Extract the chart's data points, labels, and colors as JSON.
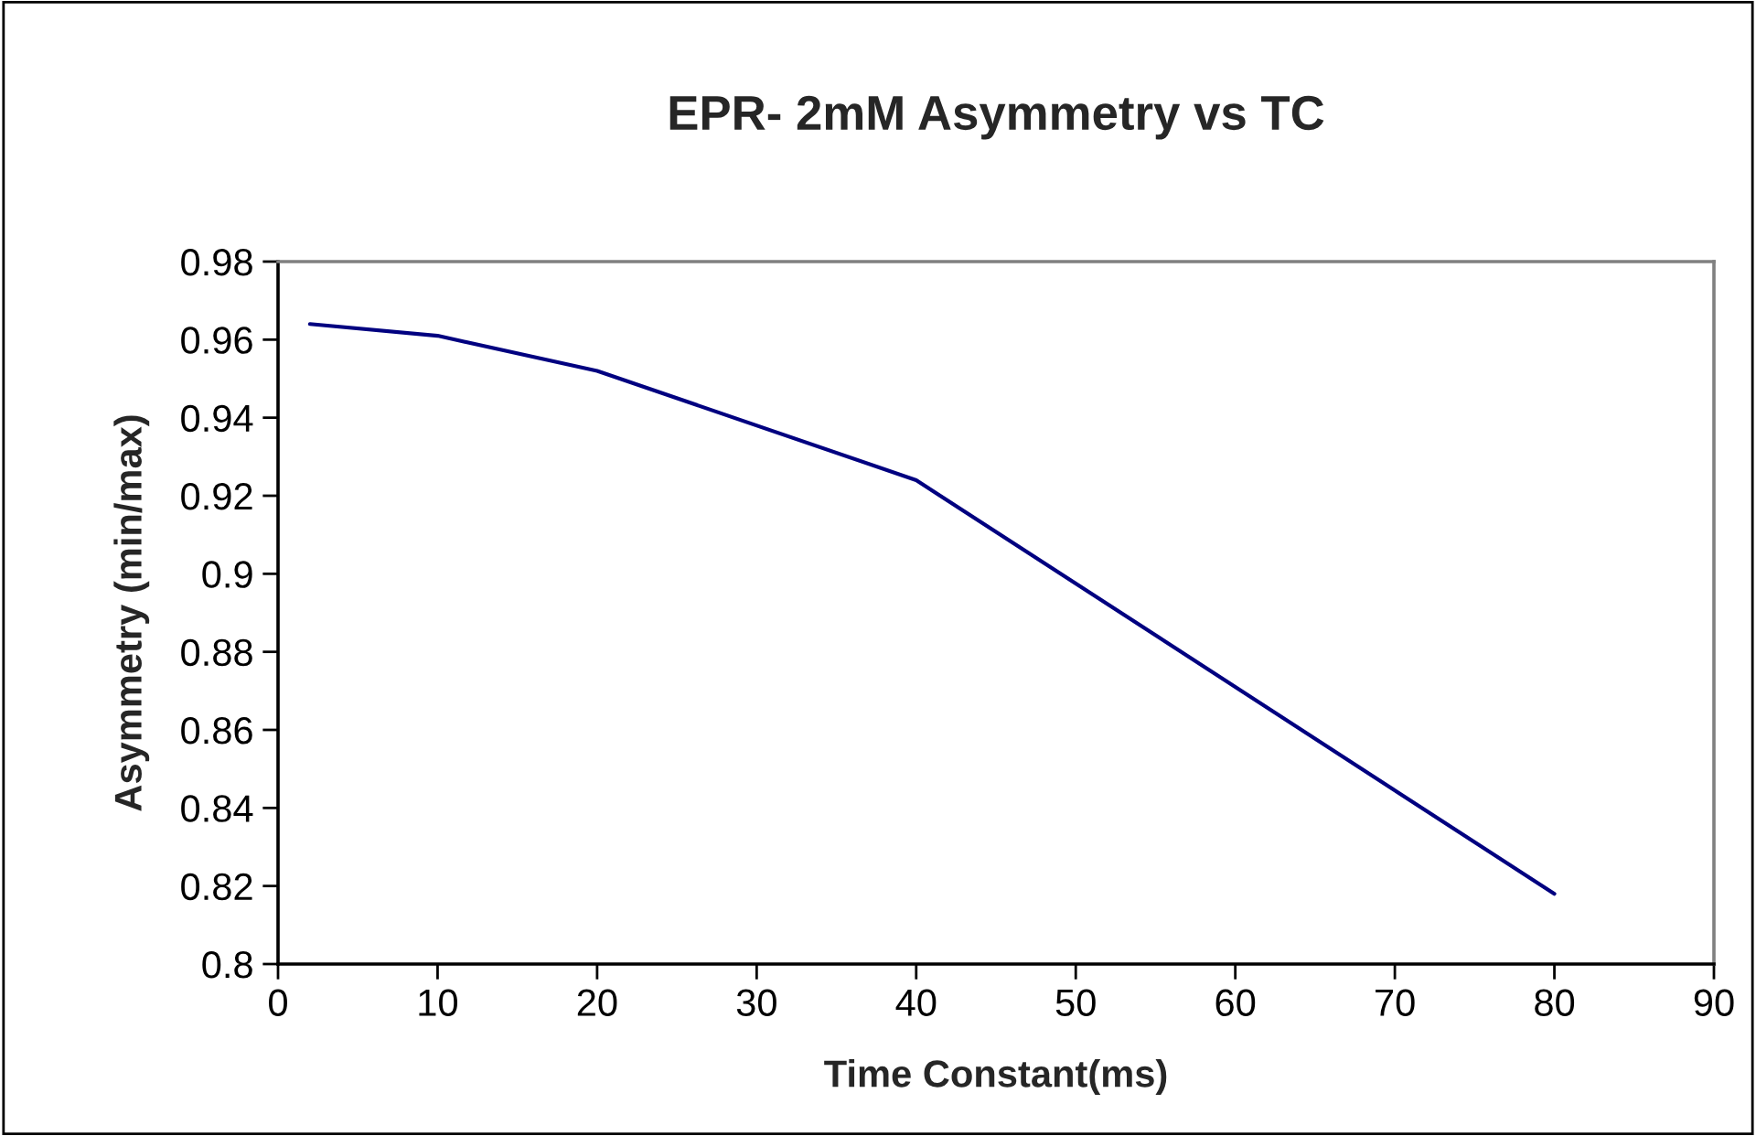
{
  "chart_data": {
    "type": "line",
    "title": "EPR- 2mM Asymmetry vs TC",
    "xlabel": "Time Constant(ms)",
    "ylabel": "Asymmetry (min/max)",
    "x": [
      2,
      10,
      20,
      40,
      80
    ],
    "series": [
      {
        "color": "#000080",
        "values": [
          0.964,
          0.961,
          0.952,
          0.924,
          0.818
        ]
      }
    ],
    "xlim": [
      0,
      90
    ],
    "xticks": [
      0,
      10,
      20,
      30,
      40,
      50,
      60,
      70,
      80,
      90
    ],
    "ylim": [
      0.8,
      0.98
    ],
    "yticks": [
      0.8,
      0.82,
      0.84,
      0.86,
      0.88,
      0.9,
      0.92,
      0.94,
      0.96,
      0.98
    ],
    "grid": false,
    "marker": "none",
    "line_style": "solid"
  }
}
